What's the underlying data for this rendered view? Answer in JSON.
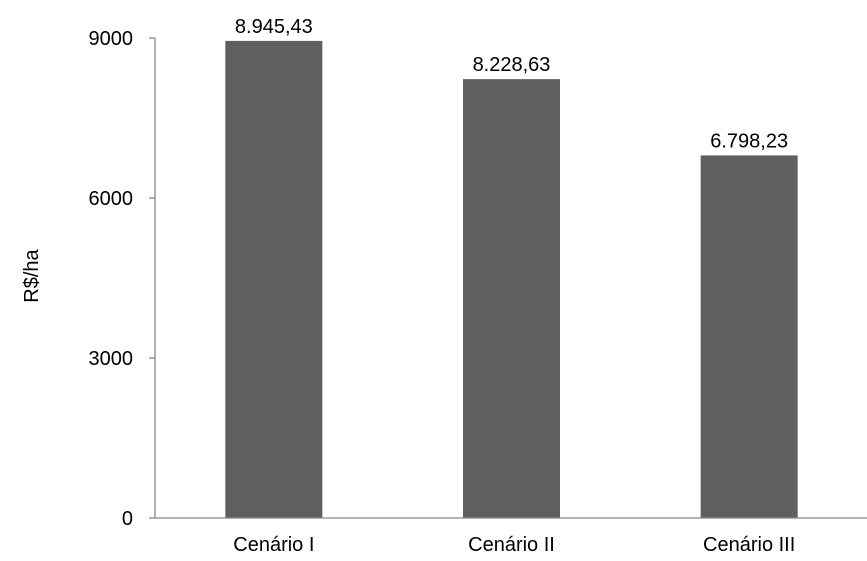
{
  "chart_data": {
    "type": "bar",
    "title": "",
    "xlabel": "",
    "ylabel": "R$/ha",
    "categories": [
      "Cenário I",
      "Cenário II",
      "Cenário III"
    ],
    "values": [
      8945.43,
      8228.63,
      6798.23
    ],
    "value_labels": [
      "8.945,43",
      "8.228,63",
      "6.798,23"
    ],
    "yticks": [
      "0",
      "3000",
      "6000",
      "9000"
    ],
    "ytick_values": [
      0,
      3000,
      6000,
      9000
    ],
    "ylim": [
      0,
      9000
    ],
    "grid": false,
    "legend": "none",
    "bar_color": "#5f5f5f",
    "axis_color": "#868686"
  }
}
